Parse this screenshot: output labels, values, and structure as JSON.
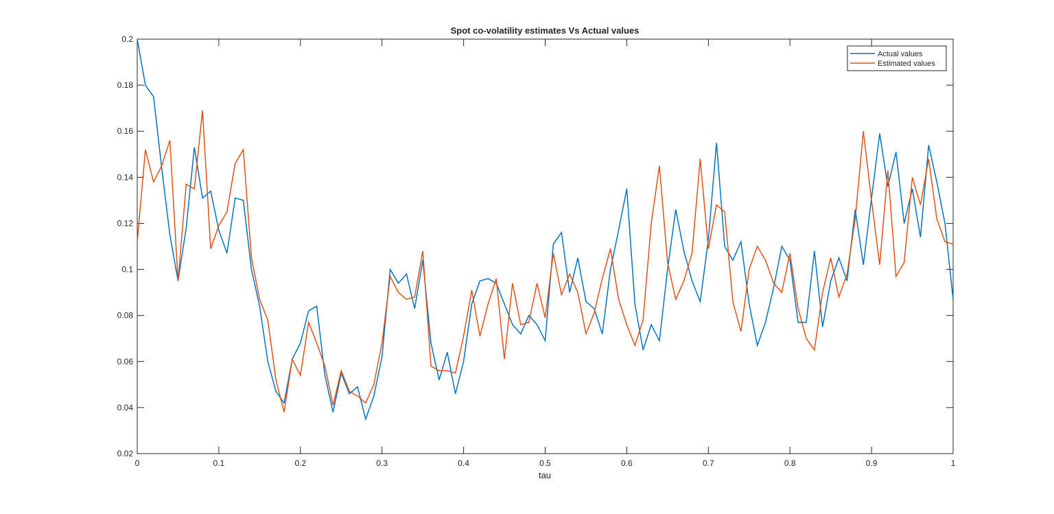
{
  "chart_data": {
    "type": "line",
    "title": "Spot co-volatility estimates Vs Actual values",
    "x_label": "tau",
    "x": [
      0,
      0.01,
      0.02,
      0.03,
      0.04,
      0.05,
      0.06,
      0.07,
      0.08,
      0.09,
      0.1,
      0.11,
      0.12,
      0.13,
      0.14,
      0.15,
      0.16,
      0.17,
      0.18,
      0.19,
      0.2,
      0.21,
      0.22,
      0.23,
      0.24,
      0.25,
      0.26,
      0.27,
      0.28,
      0.29,
      0.3,
      0.31,
      0.32,
      0.33,
      0.34,
      0.35,
      0.36,
      0.37,
      0.38,
      0.39,
      0.4,
      0.41,
      0.42,
      0.43,
      0.44,
      0.45,
      0.46,
      0.47,
      0.48,
      0.49,
      0.5,
      0.51,
      0.52,
      0.53,
      0.54,
      0.55,
      0.56,
      0.57,
      0.58,
      0.59,
      0.6,
      0.61,
      0.62,
      0.63,
      0.64,
      0.65,
      0.66,
      0.67,
      0.68,
      0.69,
      0.7,
      0.71,
      0.72,
      0.73,
      0.74,
      0.75,
      0.76,
      0.77,
      0.78,
      0.79,
      0.8,
      0.81,
      0.82,
      0.83,
      0.84,
      0.85,
      0.86,
      0.87,
      0.88,
      0.89,
      0.9,
      0.91,
      0.92,
      0.93,
      0.94,
      0.95,
      0.96,
      0.97,
      0.98,
      0.99,
      1
    ],
    "series": [
      {
        "name": "Actual values",
        "color": "#0072bd",
        "values": [
          0.2,
          0.18,
          0.175,
          0.144,
          0.115,
          0.095,
          0.118,
          0.153,
          0.131,
          0.134,
          0.117,
          0.107,
          0.131,
          0.13,
          0.1,
          0.084,
          0.06,
          0.047,
          0.042,
          0.061,
          0.068,
          0.082,
          0.084,
          0.054,
          0.038,
          0.055,
          0.046,
          0.049,
          0.035,
          0.045,
          0.062,
          0.1,
          0.094,
          0.098,
          0.083,
          0.104,
          0.068,
          0.052,
          0.064,
          0.046,
          0.06,
          0.085,
          0.095,
          0.096,
          0.094,
          0.085,
          0.076,
          0.072,
          0.08,
          0.076,
          0.069,
          0.111,
          0.116,
          0.09,
          0.105,
          0.086,
          0.083,
          0.072,
          0.1,
          0.117,
          0.135,
          0.085,
          0.065,
          0.076,
          0.069,
          0.1,
          0.126,
          0.108,
          0.095,
          0.086,
          0.113,
          0.155,
          0.11,
          0.104,
          0.112,
          0.085,
          0.067,
          0.077,
          0.092,
          0.11,
          0.104,
          0.077,
          0.077,
          0.108,
          0.075,
          0.095,
          0.105,
          0.095,
          0.126,
          0.102,
          0.131,
          0.159,
          0.136,
          0.151,
          0.12,
          0.135,
          0.114,
          0.154,
          0.138,
          0.12,
          0.087
        ]
      },
      {
        "name": "Estimated values",
        "color": "#d95319",
        "values": [
          0.112,
          0.152,
          0.138,
          0.145,
          0.156,
          0.095,
          0.137,
          0.135,
          0.169,
          0.109,
          0.119,
          0.125,
          0.146,
          0.152,
          0.105,
          0.087,
          0.078,
          0.052,
          0.038,
          0.061,
          0.054,
          0.077,
          0.068,
          0.058,
          0.041,
          0.056,
          0.047,
          0.045,
          0.042,
          0.05,
          0.068,
          0.097,
          0.09,
          0.087,
          0.088,
          0.108,
          0.058,
          0.056,
          0.056,
          0.055,
          0.071,
          0.091,
          0.071,
          0.085,
          0.096,
          0.061,
          0.094,
          0.076,
          0.077,
          0.094,
          0.079,
          0.107,
          0.089,
          0.098,
          0.09,
          0.072,
          0.081,
          0.096,
          0.109,
          0.087,
          0.076,
          0.067,
          0.078,
          0.12,
          0.145,
          0.103,
          0.087,
          0.095,
          0.107,
          0.148,
          0.109,
          0.128,
          0.125,
          0.086,
          0.073,
          0.1,
          0.11,
          0.104,
          0.094,
          0.09,
          0.107,
          0.083,
          0.07,
          0.065,
          0.09,
          0.105,
          0.088,
          0.098,
          0.122,
          0.16,
          0.13,
          0.102,
          0.143,
          0.097,
          0.103,
          0.14,
          0.128,
          0.148,
          0.122,
          0.112,
          0.111
        ]
      }
    ],
    "xlim": [
      0,
      1
    ],
    "xticks": [
      0,
      0.1,
      0.2,
      0.3,
      0.4,
      0.5,
      0.6,
      0.7,
      0.8,
      0.9,
      1
    ],
    "ylim": [
      0.02,
      0.2
    ],
    "yticks": [
      0.02,
      0.04,
      0.06,
      0.08,
      0.1,
      0.12,
      0.14,
      0.16,
      0.18,
      0.2
    ],
    "grid": false,
    "legend": "top-right"
  }
}
